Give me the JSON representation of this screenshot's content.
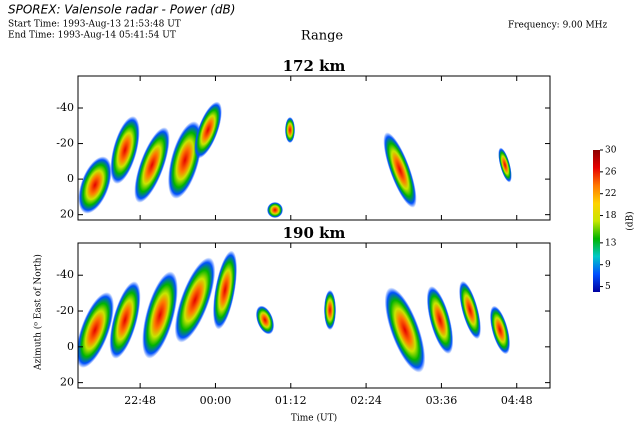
{
  "header": {
    "title": "SPOREX: Valensole radar - Power (dB)",
    "start_time": "Start Time: 1993-Aug-13 21:53:48 UT",
    "end_time": "End Time: 1993-Aug-14 05:41:54 UT",
    "range_label": "Range",
    "frequency": "Frequency:  9.00 MHz"
  },
  "chart_data": [
    {
      "type": "heatmap",
      "title": "172 km",
      "xlim": [
        21.81,
        29.33
      ],
      "ylim": [
        23,
        -58
      ],
      "yticks": [
        -40,
        -20,
        0,
        20
      ],
      "xticks": [
        {
          "value": 22.8,
          "label": "22:48"
        },
        {
          "value": 24.0,
          "label": "00:00"
        },
        {
          "value": 25.2,
          "label": "01:12"
        },
        {
          "value": 26.4,
          "label": "02:24"
        },
        {
          "value": 27.6,
          "label": "03:36"
        },
        {
          "value": 28.8,
          "label": "04:48"
        }
      ]
    },
    {
      "type": "heatmap",
      "title": "190 km",
      "xlabel": "Time (UT)",
      "ylabel": "Azimuth (⁰ East of North)",
      "xlim": [
        21.81,
        29.33
      ],
      "ylim": [
        23,
        -58
      ],
      "yticks": [
        -40,
        -20,
        0,
        20
      ],
      "xticks": [
        {
          "value": 22.8,
          "label": "22:48"
        },
        {
          "value": 24.0,
          "label": "00:00"
        },
        {
          "value": 25.2,
          "label": "01:12"
        },
        {
          "value": 26.4,
          "label": "02:24"
        },
        {
          "value": 27.6,
          "label": "03:36"
        },
        {
          "value": 28.8,
          "label": "04:48"
        }
      ]
    }
  ],
  "colorbar": {
    "label": "(dB)",
    "clim": [
      4,
      30
    ],
    "ticks": [
      30,
      26,
      22,
      18,
      13,
      9,
      5
    ],
    "colors": [
      "#0000a0",
      "#0050ff",
      "#00c8c8",
      "#00b400",
      "#c8e600",
      "#ffd200",
      "#ff7800",
      "#e60000",
      "#8c0000"
    ]
  }
}
